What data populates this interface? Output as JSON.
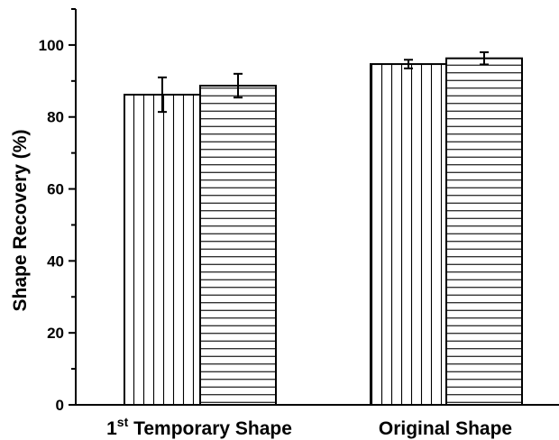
{
  "chart_data": {
    "type": "bar",
    "ylabel": "Shape Recovery (%)",
    "xlabel": "",
    "ylim": [
      0,
      110
    ],
    "yticks": [
      0,
      20,
      40,
      60,
      80,
      100
    ],
    "ytick_labels": [
      "0",
      "20",
      "40",
      "60",
      "80",
      "100"
    ],
    "categories": [
      {
        "main": "1",
        "sup": "st",
        "rest": " Temporary Shape"
      },
      {
        "main": "Original Shape",
        "sup": "",
        "rest": ""
      }
    ],
    "series": [
      {
        "pattern": "vertical-lines",
        "values": [
          86.2,
          94.7
        ],
        "errors": [
          4.8,
          1.2
        ]
      },
      {
        "pattern": "horizontal-lines",
        "values": [
          88.7,
          96.3
        ],
        "errors": [
          3.3,
          1.7
        ]
      }
    ],
    "grid": false,
    "legend": "none",
    "colors": {
      "bar_fill": "#ffffff",
      "stroke": "#000000",
      "background": "#ffffff"
    }
  }
}
